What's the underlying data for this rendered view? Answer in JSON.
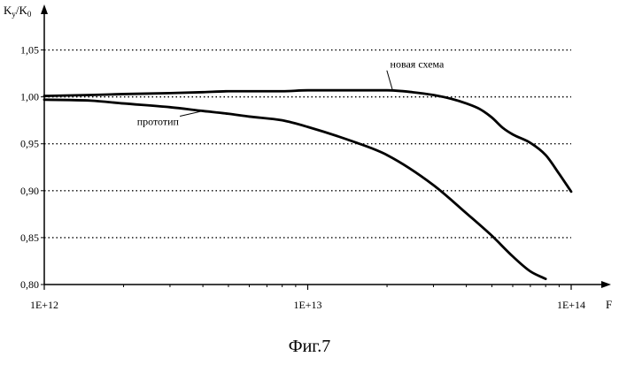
{
  "chart_data": {
    "type": "line",
    "xscale": "log",
    "xlim": [
      1000000000000.0,
      100000000000000.0
    ],
    "ylim": [
      0.8,
      1.075
    ],
    "x_ticks": [
      {
        "value": 1000000000000.0,
        "label": "1E+12"
      },
      {
        "value": 10000000000000.0,
        "label": "1E+13"
      },
      {
        "value": 100000000000000.0,
        "label": "1E+14"
      }
    ],
    "y_ticks": [
      {
        "value": 0.8,
        "label": "0,80"
      },
      {
        "value": 0.85,
        "label": "0,85"
      },
      {
        "value": 0.9,
        "label": "0,90"
      },
      {
        "value": 0.95,
        "label": "0,95"
      },
      {
        "value": 1.0,
        "label": "1,00"
      },
      {
        "value": 1.05,
        "label": "1,05"
      }
    ],
    "grid": "horizontal-dotted",
    "xlabel": "F",
    "ylabel": "Ky/K0",
    "series": [
      {
        "name": "новая схема",
        "x": [
          1000000000000.0,
          1500000000000.0,
          2000000000000.0,
          3000000000000.0,
          4000000000000.0,
          5000000000000.0,
          6000000000000.0,
          8000000000000.0,
          10000000000000.0,
          15000000000000.0,
          20000000000000.0,
          25000000000000.0,
          30000000000000.0,
          35000000000000.0,
          40000000000000.0,
          45000000000000.0,
          50000000000000.0,
          55000000000000.0,
          60000000000000.0,
          70000000000000.0,
          80000000000000.0,
          90000000000000.0,
          100000000000000.0
        ],
        "y": [
          1.001,
          1.002,
          1.003,
          1.004,
          1.005,
          1.006,
          1.006,
          1.006,
          1.007,
          1.007,
          1.007,
          1.005,
          1.002,
          0.998,
          0.993,
          0.987,
          0.978,
          0.967,
          0.96,
          0.951,
          0.938,
          0.918,
          0.899
        ]
      },
      {
        "name": "прототип",
        "x": [
          1000000000000.0,
          1500000000000.0,
          2000000000000.0,
          3000000000000.0,
          4000000000000.0,
          5000000000000.0,
          6000000000000.0,
          8000000000000.0,
          10000000000000.0,
          15000000000000.0,
          20000000000000.0,
          30000000000000.0,
          40000000000000.0,
          50000000000000.0,
          60000000000000.0,
          70000000000000.0,
          80000000000000.0
        ],
        "y": [
          0.997,
          0.996,
          0.993,
          0.989,
          0.985,
          0.982,
          0.979,
          0.975,
          0.968,
          0.952,
          0.938,
          0.906,
          0.876,
          0.852,
          0.83,
          0.814,
          0.806
        ]
      }
    ],
    "annotations": [
      {
        "text": "новая схема",
        "x": 26000000000000.0,
        "y": 1.031,
        "anchor_x": 21000000000000.0,
        "anchor_y": 1.007
      },
      {
        "text": "прототип",
        "x": 2700000000000.0,
        "y": 0.97,
        "anchor_x": 4000000000000.0,
        "anchor_y": 0.985
      }
    ]
  },
  "caption": "Фиг.7"
}
